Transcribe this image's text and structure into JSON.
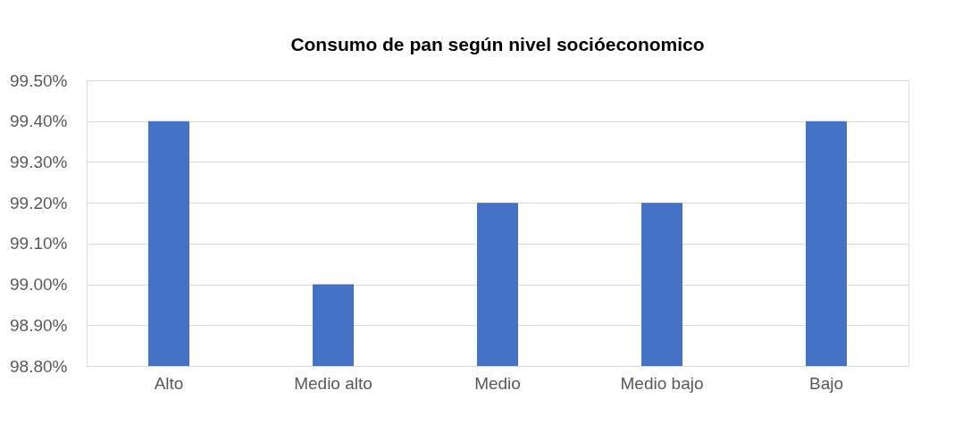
{
  "chart_data": {
    "type": "bar",
    "title": "Consumo de pan según nivel socióeconomico",
    "categories": [
      "Alto",
      "Medio alto",
      "Medio",
      "Medio bajo",
      "Bajo"
    ],
    "values": [
      99.4,
      99.0,
      99.2,
      99.2,
      99.4
    ],
    "color": "#4472c4",
    "ylim": [
      98.8,
      99.5
    ],
    "yticks": [
      {
        "value": 98.8,
        "label": "98.80%"
      },
      {
        "value": 98.9,
        "label": "98.90%"
      },
      {
        "value": 99.0,
        "label": "99.00%"
      },
      {
        "value": 99.1,
        "label": "99.10%"
      },
      {
        "value": 99.2,
        "label": "99.20%"
      },
      {
        "value": 99.3,
        "label": "99.30%"
      },
      {
        "value": 99.4,
        "label": "99.40%"
      },
      {
        "value": 99.5,
        "label": "99.50%"
      }
    ],
    "grid": "y"
  }
}
